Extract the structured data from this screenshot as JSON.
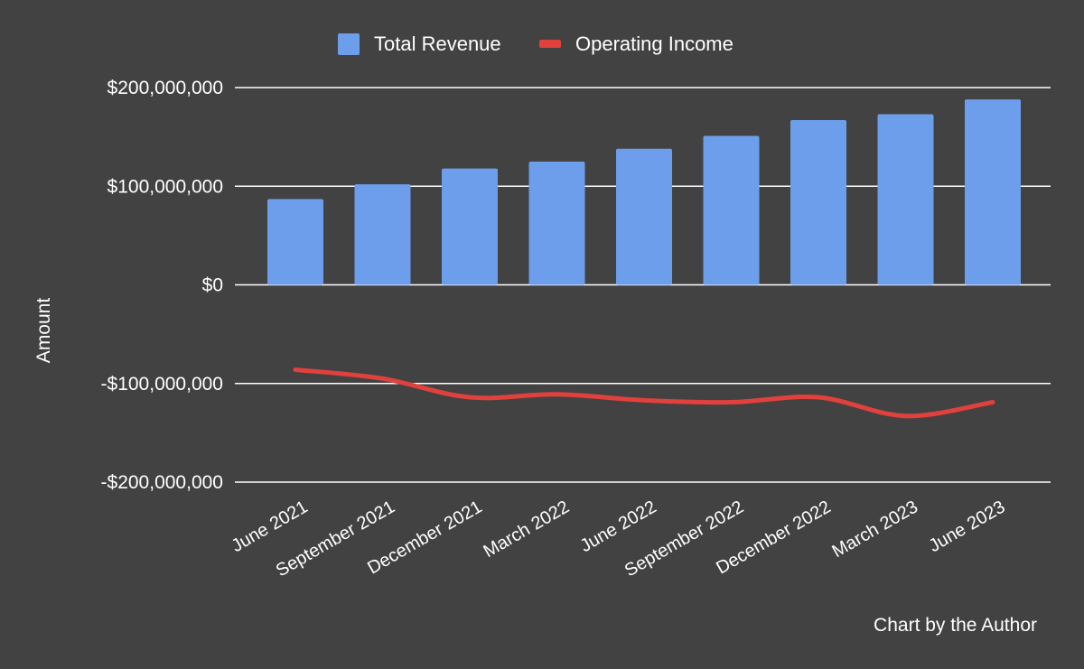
{
  "chart_data": {
    "type": "bar",
    "title": "",
    "xlabel": "",
    "ylabel": "Amount",
    "ylim": [
      -200000000,
      200000000
    ],
    "yticks": [
      {
        "value": 200000000,
        "label": "$200,000,000"
      },
      {
        "value": 100000000,
        "label": "$100,000,000"
      },
      {
        "value": 0,
        "label": "$0"
      },
      {
        "value": -100000000,
        "label": "-$100,000,000"
      },
      {
        "value": -200000000,
        "label": "-$200,000,000"
      }
    ],
    "categories": [
      "June 2021",
      "September 2021",
      "December 2021",
      "March 2022",
      "June 2022",
      "September 2022",
      "December 2022",
      "March 2023",
      "June 2023"
    ],
    "series": [
      {
        "name": "Total Revenue",
        "type": "bar",
        "color": "#6d9eeb",
        "values": [
          87000000,
          102000000,
          118000000,
          125000000,
          138000000,
          151000000,
          167000000,
          173000000,
          188000000
        ]
      },
      {
        "name": "Operating Income",
        "type": "line",
        "color": "#e0413c",
        "values": [
          -86000000,
          -95000000,
          -114000000,
          -111000000,
          -117000000,
          -119000000,
          -114000000,
          -133000000,
          -119000000
        ]
      }
    ],
    "grid": true,
    "legend": "top-center"
  },
  "footer": {
    "credit": "Chart by the Author"
  }
}
